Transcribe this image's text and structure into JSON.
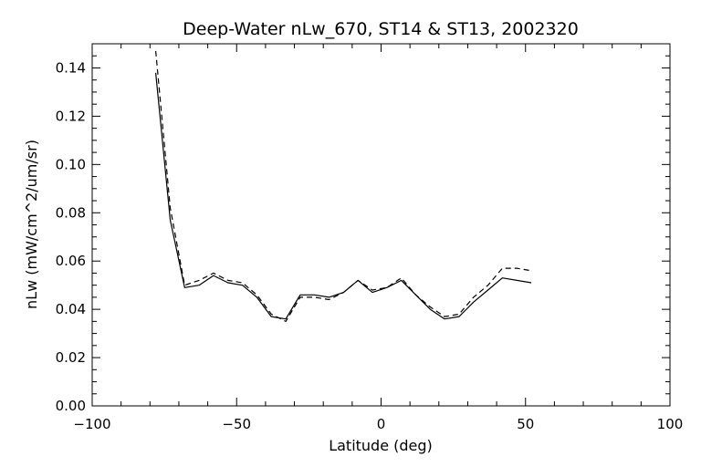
{
  "chart_data": {
    "type": "line",
    "title": "Deep-Water nLw_670, ST14 & ST13, 2002320",
    "xlabel": "Latitude (deg)",
    "ylabel": "nLw (mW/cm^2/um/sr)",
    "xlim": [
      -100,
      100
    ],
    "ylim": [
      0.0,
      0.15
    ],
    "x_ticks": [
      "−100",
      "−50",
      "0",
      "50",
      "100"
    ],
    "y_ticks": [
      "0.00",
      "0.02",
      "0.04",
      "0.06",
      "0.08",
      "0.10",
      "0.12",
      "0.14"
    ],
    "x_tick_values": [
      -100,
      -50,
      0,
      50,
      100
    ],
    "y_tick_values": [
      0.0,
      0.02,
      0.04,
      0.06,
      0.08,
      0.1,
      0.12,
      0.14
    ],
    "grid": false,
    "series": [
      {
        "style": "solid",
        "color": "#000000",
        "x": [
          -78,
          -73,
          -68,
          -63,
          -58,
          -53,
          -48,
          -43,
          -38,
          -33,
          -28,
          -23,
          -18,
          -13,
          -8,
          -3,
          2,
          7,
          12,
          17,
          22,
          27,
          32,
          37,
          42,
          47,
          52
        ],
        "y": [
          0.138,
          0.077,
          0.049,
          0.05,
          0.054,
          0.051,
          0.05,
          0.045,
          0.037,
          0.036,
          0.046,
          0.046,
          0.045,
          0.047,
          0.052,
          0.047,
          0.049,
          0.052,
          0.046,
          0.04,
          0.036,
          0.037,
          0.043,
          0.048,
          0.053,
          0.052,
          0.051
        ]
      },
      {
        "style": "dashed",
        "color": "#000000",
        "x": [
          -78,
          -73,
          -68,
          -63,
          -58,
          -53,
          -48,
          -43,
          -38,
          -33,
          -28,
          -23,
          -18,
          -13,
          -8,
          -3,
          2,
          7,
          12,
          17,
          22,
          27,
          32,
          37,
          42,
          47,
          52
        ],
        "y": [
          0.147,
          0.082,
          0.05,
          0.052,
          0.055,
          0.052,
          0.051,
          0.046,
          0.038,
          0.035,
          0.045,
          0.045,
          0.044,
          0.047,
          0.052,
          0.048,
          0.049,
          0.053,
          0.046,
          0.041,
          0.037,
          0.038,
          0.045,
          0.05,
          0.057,
          0.057,
          0.056
        ]
      }
    ]
  }
}
